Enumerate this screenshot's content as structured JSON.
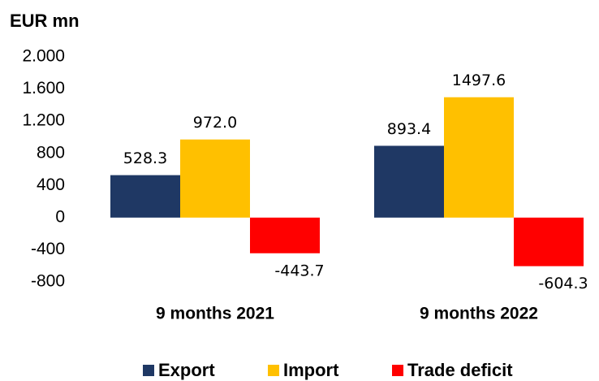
{
  "chart_data": {
    "type": "bar",
    "y_label": "EUR mn",
    "categories": [
      "9 months 2021",
      "9 months 2022"
    ],
    "series": [
      {
        "name": "Export",
        "color": "#1f3864",
        "values": [
          528.3,
          893.4
        ],
        "value_labels": [
          "528.3",
          "893.4"
        ]
      },
      {
        "name": "Import",
        "color": "#ffc000",
        "values": [
          972.0,
          1497.6
        ],
        "value_labels": [
          "972.0",
          "1497.6"
        ]
      },
      {
        "name": "Trade deficit",
        "color": "#ff0000",
        "values": [
          -443.7,
          -604.3
        ],
        "value_labels": [
          "-443.7",
          "-604.3"
        ]
      }
    ],
    "ylim": [
      -800,
      2000
    ],
    "yticks": [
      {
        "value": 2000,
        "label": "2.000"
      },
      {
        "value": 1600,
        "label": "1.600"
      },
      {
        "value": 1200,
        "label": "1.200"
      },
      800,
      400,
      0,
      -400,
      -800
    ],
    "grid": false,
    "legend": "bottom"
  }
}
